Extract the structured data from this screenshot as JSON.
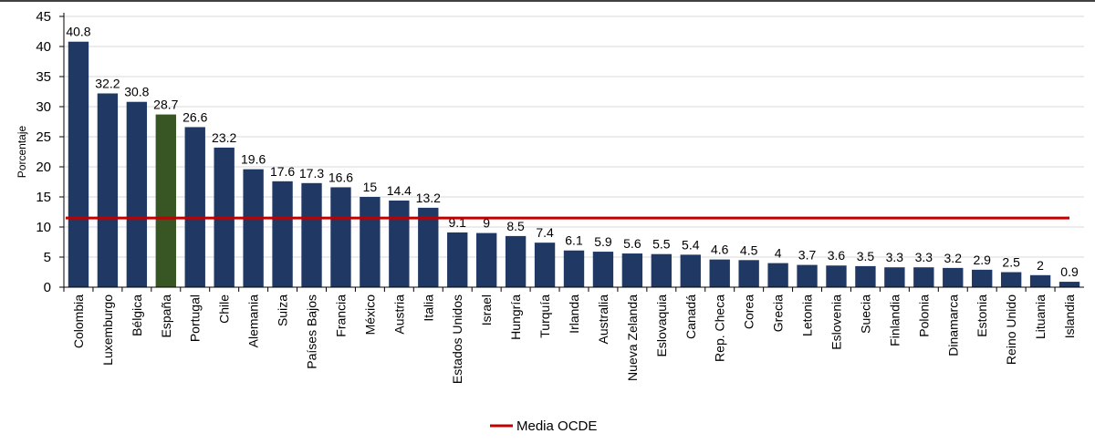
{
  "chart_data": {
    "type": "bar",
    "categories": [
      "Colombia",
      "Luxemburgo",
      "Bélgica",
      "España",
      "Portugal",
      "Chile",
      "Alemania",
      "Suiza",
      "Países Bajos",
      "Francia",
      "México",
      "Austria",
      "Italia",
      "Estados Unidos",
      "Israel",
      "Hungría",
      "Turquía",
      "Irlanda",
      "Australia",
      "Nueva Zelanda",
      "Eslovaquia",
      "Canadá",
      "Rep. Checa",
      "Corea",
      "Grecia",
      "Letonia",
      "Eslovenia",
      "Suecia",
      "Finlandia",
      "Polonia",
      "Dinamarca",
      "Estonia",
      "Reino Unido",
      "Lituania",
      "Islandia"
    ],
    "values": [
      40.8,
      32.2,
      30.8,
      28.7,
      26.6,
      23.2,
      19.6,
      17.6,
      17.3,
      16.6,
      15,
      14.4,
      13.2,
      9.1,
      9,
      8.5,
      7.4,
      6.1,
      5.9,
      5.6,
      5.5,
      5.4,
      4.6,
      4.5,
      4,
      3.7,
      3.6,
      3.5,
      3.3,
      3.3,
      3.2,
      2.9,
      2.5,
      2,
      0.9
    ],
    "value_labels": [
      "40.8",
      "32.2",
      "30.8",
      "28.7",
      "26.6",
      "23.2",
      "19.6",
      "17.6",
      "17.3",
      "16.6",
      "15",
      "14.4",
      "13.2",
      "9.1",
      "9",
      "8.5",
      "7.4",
      "6.1",
      "5.9",
      "5.6",
      "5.5",
      "5.4",
      "4.6",
      "4.5",
      "4",
      "3.7",
      "3.6",
      "3.5",
      "3.3",
      "3.3",
      "3.2",
      "2.9",
      "2.5",
      "2",
      "0.9"
    ],
    "highlight_category": "España",
    "bar_color": "#1f3864",
    "highlight_color": "#375623",
    "reference_line": {
      "name": "Media OCDE",
      "value": 11.5,
      "color": "#c00000"
    },
    "ylabel": "Porcentaje",
    "xlabel": "",
    "ylim": [
      0,
      45
    ],
    "yticks": [
      0,
      5,
      10,
      15,
      20,
      25,
      30,
      35,
      40,
      45
    ],
    "grid": true,
    "legend_position": "bottom"
  }
}
